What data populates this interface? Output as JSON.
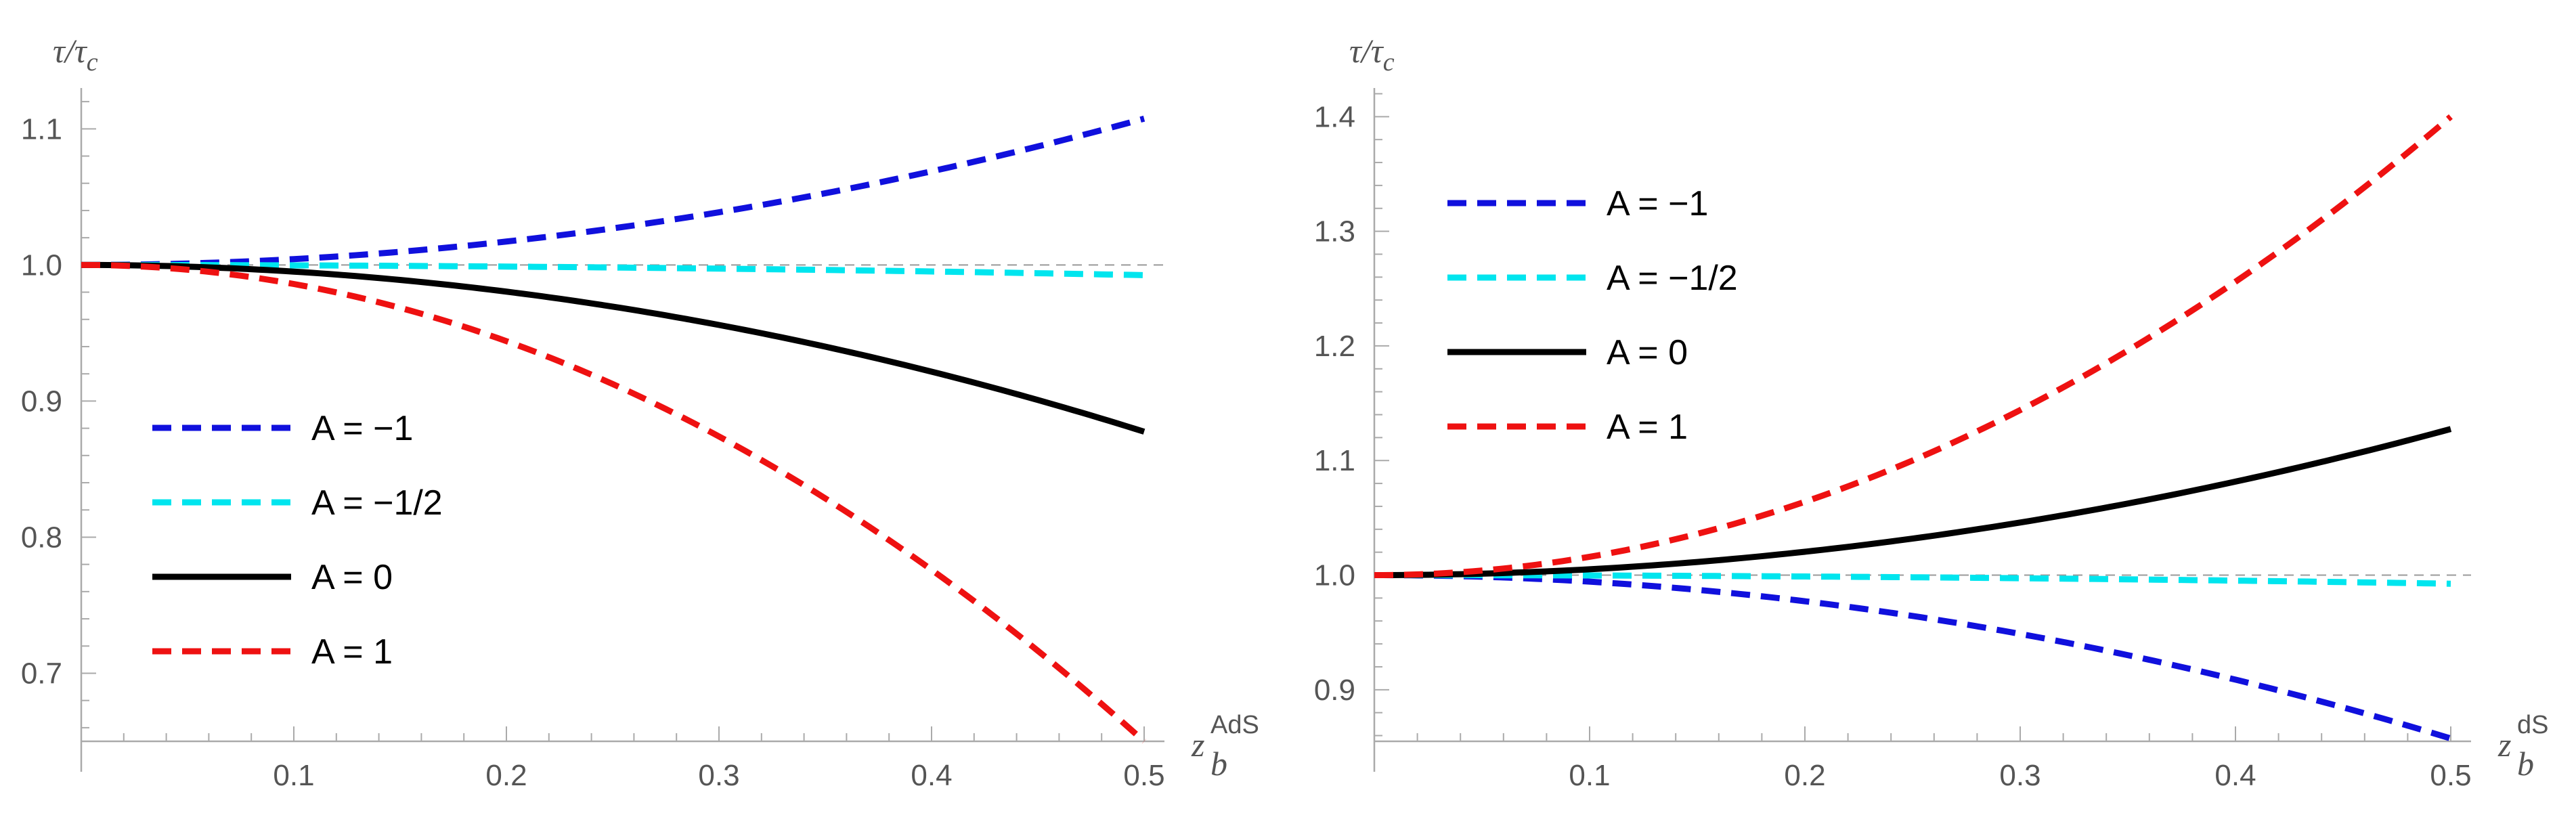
{
  "chart_data": [
    {
      "type": "line",
      "title": "",
      "ylabel": "τ/τ_c",
      "xlabel_main": "z",
      "xlabel_sub": "b",
      "xlabel_sup": "AdS",
      "xlim": [
        0,
        0.5
      ],
      "ylim": [
        0.65,
        1.13
      ],
      "xticks": [
        0.1,
        0.2,
        0.3,
        0.4,
        0.5
      ],
      "xtick_labels": [
        "0.1",
        "0.2",
        "0.3",
        "0.4",
        "0.5"
      ],
      "yticks": [
        0.7,
        0.8,
        0.9,
        1.0,
        1.1
      ],
      "ytick_labels": [
        "0.7",
        "0.8",
        "0.9",
        "1.0",
        "1.1"
      ],
      "reference_line": 1.0,
      "legend_position": "middle-left",
      "series": [
        {
          "name": "A = −1",
          "color": "#1010dd",
          "dash": "dashed",
          "coef": 0.43
        },
        {
          "name": "A = −1/2",
          "color": "#00e5ee",
          "dash": "dashed",
          "coef": -0.03
        },
        {
          "name": "A = 0",
          "color": "#000000",
          "dash": "solid",
          "coef": -0.49
        },
        {
          "name": "A = 1",
          "color": "#ee1111",
          "dash": "dashed",
          "coef": -1.4
        }
      ]
    },
    {
      "type": "line",
      "title": "",
      "ylabel": "τ/τ_c",
      "xlabel_main": "z",
      "xlabel_sub": "b",
      "xlabel_sup": "dS",
      "xlim": [
        0,
        0.5
      ],
      "ylim": [
        0.855,
        1.425
      ],
      "xticks": [
        0.1,
        0.2,
        0.3,
        0.4,
        0.5
      ],
      "xtick_labels": [
        "0.1",
        "0.2",
        "0.3",
        "0.4",
        "0.5"
      ],
      "yticks": [
        0.9,
        1.0,
        1.1,
        1.2,
        1.3,
        1.4
      ],
      "ytick_labels": [
        "0.9",
        "1.0",
        "1.1",
        "1.2",
        "1.3",
        "1.4"
      ],
      "reference_line": 1.0,
      "legend_position": "top-left",
      "series": [
        {
          "name": "A = −1",
          "color": "#1010dd",
          "dash": "dashed",
          "coef": -0.57
        },
        {
          "name": "A = −1/2",
          "color": "#00e5ee",
          "dash": "dashed",
          "coef": -0.03
        },
        {
          "name": "A = 0",
          "color": "#000000",
          "dash": "solid",
          "coef": 0.51
        },
        {
          "name": "A = 1",
          "color": "#ee1111",
          "dash": "dashed",
          "coef": 1.6
        }
      ]
    }
  ]
}
